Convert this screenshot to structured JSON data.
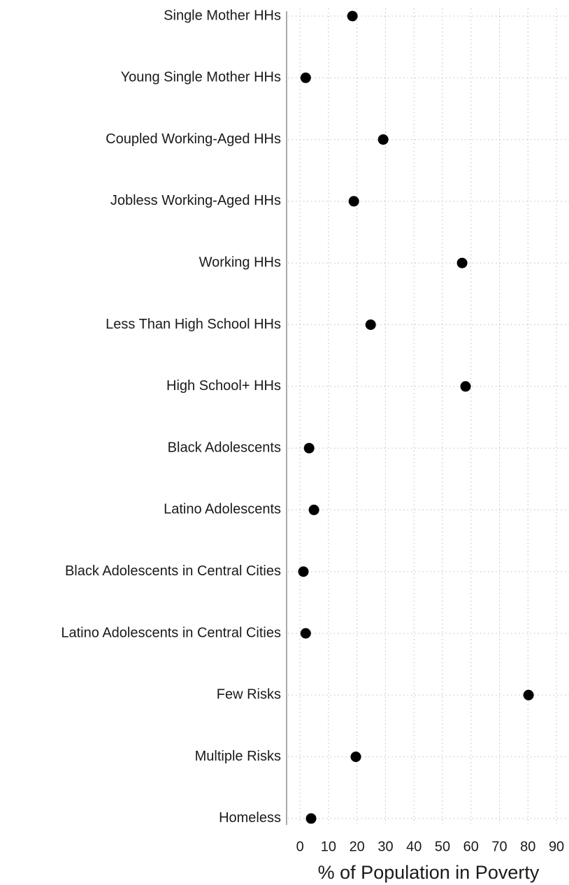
{
  "chart_data": {
    "type": "dot",
    "x_label": "% of Population in Poverty",
    "categories": [
      "Single Mother HHs",
      "Young Single Mother HHs",
      "Coupled Working-Aged HHs",
      "Jobless Working-Aged HHs",
      "Working HHs",
      "Less Than High School HHs",
      "High School+ HHs",
      "Black Adolescents",
      "Latino Adolescents",
      "Black Adolescents in Central Cities",
      "Latino Adolescents in Central Cities",
      "Few Risks",
      "Multiple Risks",
      "Homeless"
    ],
    "values": [
      18.4,
      2.0,
      29.2,
      18.9,
      56.9,
      24.8,
      58.1,
      3.2,
      4.9,
      1.2,
      2.0,
      80.2,
      19.6,
      3.9
    ],
    "color": "#000000",
    "xlim": [
      -4.7,
      94.4
    ],
    "xticks": [
      0,
      10,
      20,
      30,
      40,
      50,
      60,
      70,
      80,
      90
    ],
    "grid": true
  }
}
